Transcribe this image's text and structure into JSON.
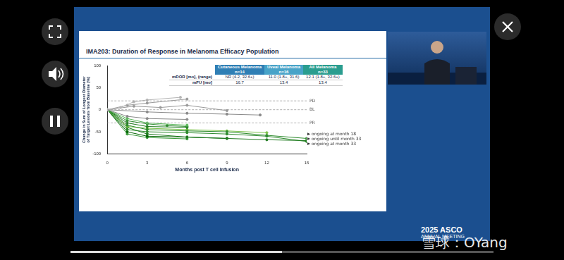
{
  "chart_data": {
    "type": "line",
    "y_label": [
      "Change in Sum of Longest Diameter",
      "of Target Lesions from Baseline [%]"
    ],
    "x_label": "Months post T cell Infusion",
    "xlim": [
      0,
      15
    ],
    "xticks": [
      0,
      3,
      6,
      9,
      12,
      15
    ],
    "ylim": [
      -100,
      100
    ],
    "yticks": [
      -100,
      -50,
      0,
      50,
      100
    ],
    "grid": false,
    "marker": "circle",
    "series": [
      {
        "color": "#b5b5b5",
        "x": [
          0,
          1,
          2,
          3,
          5.5
        ],
        "values": [
          0,
          5,
          18,
          22,
          28
        ]
      },
      {
        "color": "#9a9a9a",
        "x": [
          0,
          1.5,
          3,
          6
        ],
        "values": [
          0,
          10,
          15,
          24
        ]
      },
      {
        "color": "#9a9a9a",
        "x": [
          0,
          2,
          4,
          6,
          9
        ],
        "values": [
          0,
          8,
          5,
          10,
          -2
        ]
      },
      {
        "color": "#8a8a8a",
        "x": [
          0,
          3,
          6,
          9,
          11.5
        ],
        "values": [
          0,
          -5,
          -8,
          -10,
          -12
        ]
      },
      {
        "color": "#8a8a8a",
        "x": [
          0,
          1.5,
          3,
          6
        ],
        "values": [
          0,
          -15,
          -20,
          -22
        ]
      },
      {
        "color": "#5cb85c",
        "x": [
          0,
          1.5,
          3,
          6
        ],
        "values": [
          0,
          -20,
          -30,
          -35
        ]
      },
      {
        "color": "#2e8b2e",
        "x": [
          0,
          1.5,
          3,
          4.5,
          6
        ],
        "values": [
          0,
          -25,
          -32,
          -36,
          -38
        ]
      },
      {
        "color": "#1f7a1f",
        "x": [
          0,
          1.5,
          3,
          6
        ],
        "values": [
          0,
          -30,
          -38,
          -40
        ]
      },
      {
        "color": "#2e8b2e",
        "x": [
          0,
          1.5,
          3,
          6,
          9,
          12,
          15
        ],
        "values": [
          0,
          -35,
          -45,
          -48,
          -50,
          -58,
          -65
        ]
      },
      {
        "color": "#7cc24a",
        "x": [
          0,
          1.5,
          3,
          6,
          9,
          12
        ],
        "values": [
          0,
          -38,
          -42,
          -45,
          -48,
          -52
        ]
      },
      {
        "color": "#1f7a1f",
        "x": [
          0,
          1.5,
          3,
          6,
          9,
          12,
          15
        ],
        "values": [
          0,
          -40,
          -55,
          -62,
          -65,
          -68,
          -70
        ]
      },
      {
        "color": "#2e8b2e",
        "x": [
          0,
          1.5,
          3,
          6,
          9,
          12,
          15
        ],
        "values": [
          0,
          -45,
          -50,
          -52,
          -55,
          -60,
          -72
        ]
      },
      {
        "color": "#006400",
        "x": [
          0,
          1.5,
          3,
          6,
          9
        ],
        "values": [
          0,
          -50,
          -60,
          -62,
          -65
        ]
      },
      {
        "color": "#3a9a3a",
        "x": [
          0,
          1.5,
          3,
          6
        ],
        "values": [
          0,
          -55,
          -63,
          -66
        ]
      }
    ],
    "reference_lines": [
      {
        "label": "PD",
        "value": 20
      },
      {
        "label": "BL",
        "value": 0
      },
      {
        "label": "PR",
        "value": -30
      }
    ],
    "annotations": [
      {
        "text": "ongoing at month 18",
        "x": 15,
        "y": -55
      },
      {
        "text": "ongoing until month 33",
        "x": 15,
        "y": -66
      },
      {
        "text": "ongoing at month 33",
        "x": 15,
        "y": -77
      }
    ]
  },
  "slide": {
    "title": "IMA203: Duration of Response in Melanoma Efficacy Population",
    "table": {
      "header": [
        {
          "name": "Cutaneous Melanoma",
          "n": "n=14",
          "color": "#2f7fb5"
        },
        {
          "name": "Uveal Melanoma",
          "n": "n=16",
          "color": "#48a3c8"
        },
        {
          "name": "All Melanoma",
          "n": "n=33",
          "color": "#2a9d8f"
        }
      ],
      "rows": [
        [
          "mDOR [mo], (range)",
          "NR (4.2, 32.6+)",
          "11.0 (1.8+, 31.6)",
          "12.1 (1.8+, 32.6+)"
        ],
        [
          "mFU [mo]",
          "16.7",
          "13.4",
          "13.4"
        ]
      ]
    },
    "branding": [
      "2025 ASCO",
      "ANNUAL MEETING"
    ],
    "watermark": "雪球：OYang"
  }
}
